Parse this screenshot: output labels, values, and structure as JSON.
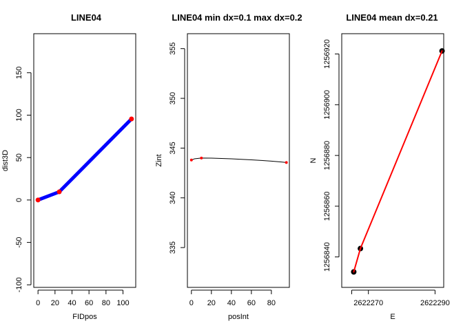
{
  "chart_data": [
    {
      "type": "line",
      "title": "LINE04",
      "xlabel": "FIDpos",
      "ylabel": "dist3D",
      "xlim": [
        -5,
        115
      ],
      "ylim": [
        -103,
        196
      ],
      "xticks": [
        0,
        20,
        40,
        60,
        80,
        100
      ],
      "yticks": [
        -100,
        -50,
        0,
        50,
        100,
        150
      ],
      "tick_labels_rotated_y": true,
      "series": [
        {
          "type": "line",
          "color": "#0000ff",
          "x": [
            0,
            25,
            110
          ],
          "y": [
            0,
            9.6,
            95.5
          ]
        },
        {
          "type": "points",
          "color": "#ff0000",
          "x": [
            0,
            25,
            110
          ],
          "y": [
            0,
            9.6,
            95.5
          ]
        }
      ]
    },
    {
      "type": "line",
      "title": "LINE04 min dx=0.1  max dx=0.2",
      "xlabel": "posInt",
      "ylabel": "Zint",
      "xlim": [
        -4,
        98
      ],
      "ylim": [
        331,
        356.5
      ],
      "xticks": [
        0,
        20,
        40,
        60,
        80
      ],
      "yticks": [
        335,
        340,
        345,
        350,
        355
      ],
      "series": [
        {
          "type": "curve",
          "color": "#000000",
          "x": [
            0,
            3,
            10,
            20,
            30,
            40,
            50,
            60,
            70,
            80,
            90,
            95
          ],
          "y": [
            343.8,
            343.92,
            344.0,
            343.99,
            343.96,
            343.92,
            343.87,
            343.82,
            343.76,
            343.69,
            343.6,
            343.55
          ]
        },
        {
          "type": "points",
          "color": "#ff0000",
          "x": [
            0,
            10,
            95
          ],
          "y": [
            343.8,
            344.0,
            343.55
          ]
        }
      ]
    },
    {
      "type": "line",
      "title": "LINE04 mean dx=0.21",
      "xlabel": "E",
      "ylabel": "N",
      "xlim": [
        2622262,
        2622292.6
      ],
      "ylim": [
        1256828,
        1256928
      ],
      "xticks": [
        2622270,
        2622290
      ],
      "xtick_labels": [
        "",
        "2622270",
        "2622290"
      ],
      "xtick_positions": [
        2622265,
        2622270,
        2622290
      ],
      "yticks": [
        1256840,
        1256860,
        1256880,
        1256900,
        1256920
      ],
      "series": [
        {
          "type": "points",
          "color": "#000000",
          "x": [
            2622265.6,
            2622267.6,
            2622292.1
          ],
          "y": [
            1256834.1,
            1256843.3,
            1256921.2
          ]
        },
        {
          "type": "line",
          "color": "#ff0000",
          "x": [
            2622265.6,
            2622267.6,
            2622292.1
          ],
          "y": [
            1256834.1,
            1256843.3,
            1256921.2
          ]
        }
      ]
    }
  ]
}
